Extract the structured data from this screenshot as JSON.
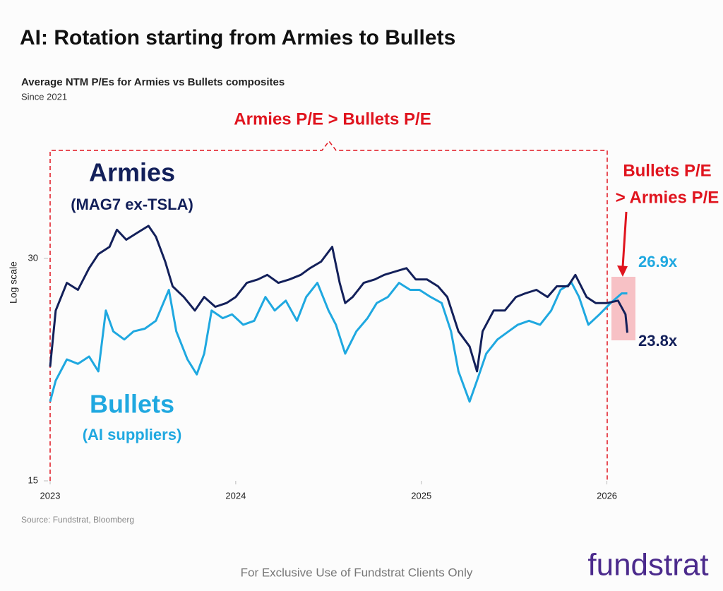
{
  "chart_data": {
    "type": "line",
    "title": "AI: Rotation starting from Armies to Bullets",
    "subtitle": "Average NTM P/Es for Armies vs Bullets composites",
    "note": "Since 2021",
    "y_label": "Log scale",
    "log_scale": true,
    "xlim": [
      2023,
      2026.15
    ],
    "xticks": [
      2023,
      2024,
      2025,
      2026
    ],
    "ylim": [
      15,
      42
    ],
    "yticks": [
      15,
      30
    ],
    "bracket_label": "Armies P/E > Bullets P/E",
    "highlight_label": [
      "Bullets P/E",
      "> Armies P/E"
    ],
    "series": [
      {
        "name": "Armies",
        "label": "(MAG7 ex-TSLA)",
        "color": "#13205a",
        "end_label": "23.8x",
        "x": [
          2023.0,
          2023.03,
          2023.09,
          2023.15,
          2023.21,
          2023.26,
          2023.32,
          2023.36,
          2023.41,
          2023.47,
          2023.53,
          2023.57,
          2023.62,
          2023.66,
          2023.72,
          2023.78,
          2023.83,
          2023.89,
          2023.95,
          2024.0,
          2024.06,
          2024.12,
          2024.17,
          2024.23,
          2024.29,
          2024.35,
          2024.4,
          2024.46,
          2024.52,
          2024.56,
          2024.59,
          2024.63,
          2024.69,
          2024.75,
          2024.8,
          2024.86,
          2024.92,
          2024.97,
          2025.03,
          2025.09,
          2025.14,
          2025.2,
          2025.26,
          2025.3,
          2025.33,
          2025.39,
          2025.45,
          2025.51,
          2025.56,
          2025.62,
          2025.68,
          2025.73,
          2025.79,
          2025.83,
          2025.89,
          2025.94,
          2026.0,
          2026.06,
          2026.1,
          2026.11
        ],
        "values": [
          21.4,
          25.5,
          27.8,
          27.2,
          29.1,
          30.4,
          31.1,
          32.8,
          31.8,
          32.5,
          33.2,
          32.1,
          29.7,
          27.5,
          26.6,
          25.5,
          26.6,
          25.8,
          26.1,
          26.6,
          27.8,
          28.1,
          28.5,
          27.8,
          28.1,
          28.5,
          29.1,
          29.7,
          31.1,
          27.8,
          26.1,
          26.6,
          27.8,
          28.1,
          28.5,
          28.8,
          29.1,
          28.1,
          28.1,
          27.5,
          26.6,
          23.9,
          22.8,
          21.1,
          23.9,
          25.5,
          25.5,
          26.6,
          26.9,
          27.2,
          26.6,
          27.5,
          27.5,
          28.5,
          26.6,
          26.1,
          26.1,
          26.3,
          25.2,
          23.8
        ]
      },
      {
        "name": "Bullets",
        "label": "(AI suppliers)",
        "color": "#1fa8e0",
        "end_label": "26.9x",
        "x": [
          2023.0,
          2023.03,
          2023.09,
          2023.15,
          2023.21,
          2023.26,
          2023.3,
          2023.34,
          2023.4,
          2023.45,
          2023.51,
          2023.57,
          2023.64,
          2023.68,
          2023.74,
          2023.79,
          2023.83,
          2023.87,
          2023.93,
          2023.98,
          2024.04,
          2024.1,
          2024.16,
          2024.21,
          2024.27,
          2024.33,
          2024.38,
          2024.44,
          2024.5,
          2024.54,
          2024.59,
          2024.65,
          2024.71,
          2024.76,
          2024.82,
          2024.88,
          2024.94,
          2024.99,
          2025.05,
          2025.11,
          2025.16,
          2025.2,
          2025.26,
          2025.3,
          2025.35,
          2025.41,
          2025.47,
          2025.52,
          2025.58,
          2025.64,
          2025.7,
          2025.75,
          2025.81,
          2025.85,
          2025.9,
          2025.96,
          2026.02,
          2026.08,
          2026.11
        ],
        "values": [
          19.2,
          20.5,
          21.9,
          21.6,
          22.1,
          21.1,
          25.5,
          23.9,
          23.3,
          23.9,
          24.1,
          24.7,
          27.2,
          23.9,
          21.9,
          20.9,
          22.3,
          25.5,
          24.9,
          25.2,
          24.4,
          24.7,
          26.6,
          25.5,
          26.3,
          24.7,
          26.6,
          27.8,
          25.5,
          24.4,
          22.3,
          23.9,
          24.9,
          26.1,
          26.6,
          27.8,
          27.2,
          27.2,
          26.6,
          26.1,
          23.9,
          21.1,
          19.2,
          20.5,
          22.3,
          23.3,
          23.9,
          24.4,
          24.7,
          24.4,
          25.5,
          27.2,
          27.8,
          26.6,
          24.4,
          25.2,
          26.1,
          26.9,
          26.9
        ]
      }
    ]
  },
  "source": "Source: Fundstrat, Bloomberg",
  "footer": "For Exclusive Use of Fundstrat Clients Only",
  "logo": "fundstrat"
}
